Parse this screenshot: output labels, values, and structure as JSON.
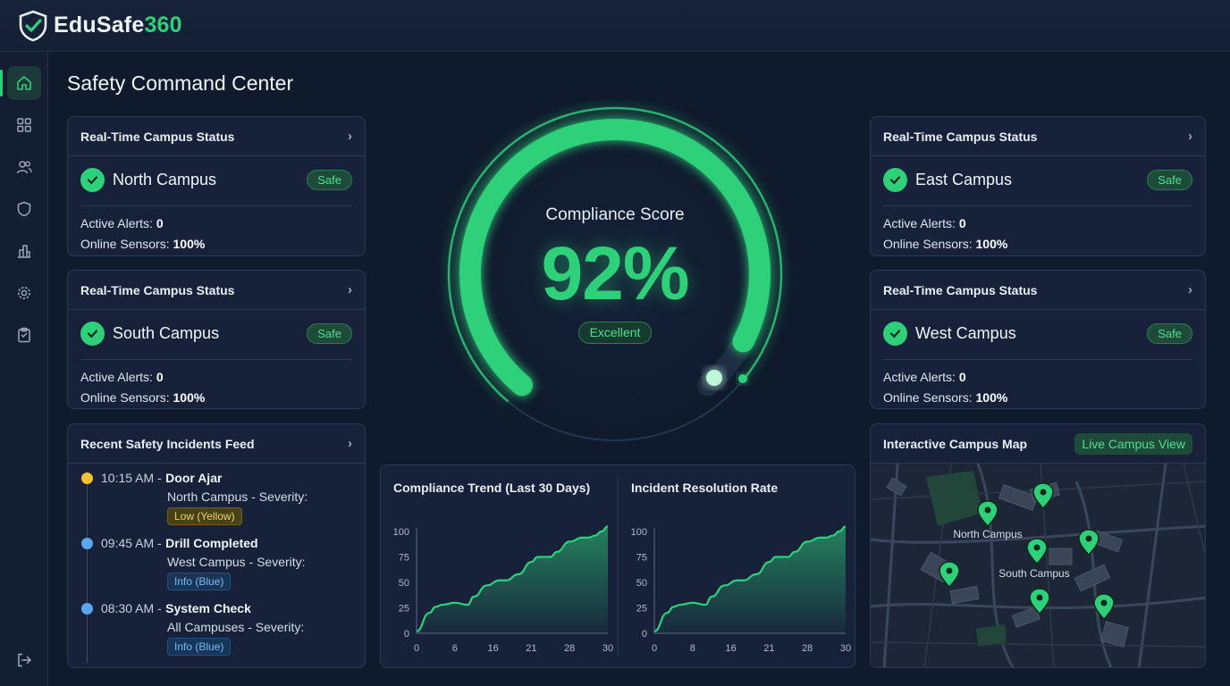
{
  "brand": {
    "name_part1": "EduSafe",
    "name_part2": "360"
  },
  "sidebar": {
    "items": [
      {
        "icon": "home-icon",
        "active": true
      },
      {
        "icon": "grid-icon"
      },
      {
        "icon": "users-icon"
      },
      {
        "icon": "shield-icon"
      },
      {
        "icon": "building-icon"
      },
      {
        "icon": "gear-icon"
      },
      {
        "icon": "clipboard-icon"
      },
      {
        "icon": "logout-icon"
      }
    ]
  },
  "page": {
    "title": "Safety Command Center"
  },
  "campuses": [
    {
      "header": "Real-Time Campus Status",
      "name": "North Campus",
      "status": "Safe",
      "alerts_label": "Active Alerts:",
      "alerts": "0",
      "sensors_label": "Online Sensors:",
      "sensors": "100%"
    },
    {
      "header": "Real-Time Campus Status",
      "name": "South Campus",
      "status": "Safe",
      "alerts_label": "Active Alerts:",
      "alerts": "0",
      "sensors_label": "Online Sensors:",
      "sensors": "100%"
    },
    {
      "header": "Real-Time Campus Status",
      "name": "East Campus",
      "status": "Safe",
      "alerts_label": "Active Alerts:",
      "alerts": "0",
      "sensors_label": "Online Sensors:",
      "sensors": "100%"
    },
    {
      "header": "Real-Time Campus Status",
      "name": "West Campus",
      "status": "Safe",
      "alerts_label": "Active Alerts:",
      "alerts": "0",
      "sensors_label": "Online Sensors:",
      "sensors": "100%"
    }
  ],
  "feed": {
    "title": "Recent Safety Incidents Feed",
    "items": [
      {
        "time": "10:15 AM -",
        "title": "Door Ajar",
        "sub": "North Campus - Severity:",
        "severity": "Low (Yellow)",
        "color": "#f2c230"
      },
      {
        "time": "09:45 AM -",
        "title": "Drill Completed",
        "sub": "West Campus - Severity:",
        "severity": "Info (Blue)",
        "color": "#5aa6f0"
      },
      {
        "time": "08:30 AM -",
        "title": "System Check",
        "sub": "All Campuses - Severity:",
        "severity": "Info (Blue)",
        "color": "#5aa6f0"
      }
    ]
  },
  "compliance": {
    "label": "Compliance Score",
    "value": "92%",
    "value_fraction": 0.92,
    "rating": "Excellent"
  },
  "charts_panel": {
    "left_title": "Compliance Trend (Last 30 Days)",
    "right_title": "Incident Resolution Rate"
  },
  "chart_data": [
    {
      "type": "area",
      "title": "Compliance Trend (Last 30 Days)",
      "x_ticks": [
        "0",
        "6",
        "16",
        "21",
        "28",
        "30"
      ],
      "y_ticks": [
        "0",
        "25",
        "50",
        "75",
        "100"
      ],
      "ylim": [
        0,
        100
      ],
      "xlim": [
        0,
        30
      ],
      "x": [
        0,
        2,
        3,
        4,
        6,
        8,
        9,
        11,
        13,
        14,
        16,
        18,
        19,
        21,
        22,
        24,
        26,
        27,
        28,
        29,
        30
      ],
      "values": [
        2,
        20,
        26,
        28,
        30,
        28,
        36,
        47,
        52,
        52,
        58,
        70,
        75,
        75,
        80,
        90,
        94,
        94,
        96,
        100,
        105
      ]
    },
    {
      "type": "area",
      "title": "Incident Resolution Rate",
      "x_ticks": [
        "0",
        "8",
        "16",
        "21",
        "28",
        "30"
      ],
      "y_ticks": [
        "0",
        "25",
        "50",
        "75",
        "100"
      ],
      "ylim": [
        0,
        100
      ],
      "xlim": [
        0,
        30
      ],
      "x": [
        0,
        2,
        3,
        4,
        6,
        8,
        9,
        11,
        13,
        14,
        16,
        18,
        19,
        21,
        22,
        24,
        26,
        27,
        28,
        29,
        30
      ],
      "values": [
        2,
        20,
        26,
        28,
        30,
        28,
        36,
        47,
        52,
        52,
        58,
        70,
        75,
        75,
        80,
        90,
        94,
        94,
        96,
        100,
        105
      ]
    }
  ],
  "map": {
    "title": "Interactive Campus Map",
    "badge": "Live Campus View",
    "labels": [
      "North Campus",
      "South Campus"
    ]
  },
  "colors": {
    "accent": "#2fd07a",
    "background": "#0f1a2c",
    "card": "#17223a"
  }
}
